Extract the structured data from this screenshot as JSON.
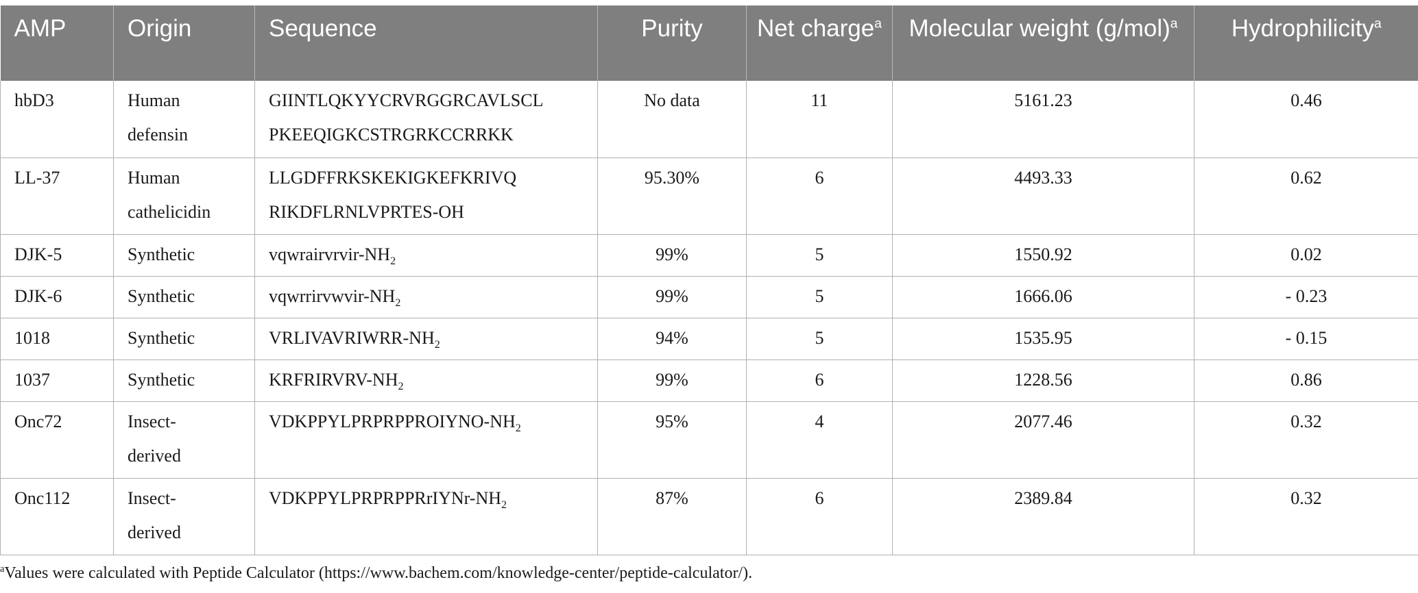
{
  "header": {
    "amp": "AMP",
    "origin": "Origin",
    "sequence": "Sequence",
    "purity": "Purity",
    "net_charge": "Net charge",
    "net_charge_mark": "a",
    "mw": "Molecular weight (g/mol)",
    "mw_mark": "a",
    "hydrophilicity": "Hydrophilicity",
    "hydrophilicity_mark": "a"
  },
  "rows": [
    {
      "amp": "hbD3",
      "origin": "Human defensin",
      "seq1": "GIINTLQKYYCRVRGGRCAVLSCL",
      "seq2": "PKEEQIGKCSTRGRKCCRRKK",
      "suffix": "",
      "sub": "",
      "purity": "No data",
      "charge": "11",
      "mw": "5161.23",
      "hyd": "0.46"
    },
    {
      "amp": "LL-37",
      "origin": "Human cathelicidin",
      "seq1": "LLGDFFRKSKEKIGKEFKRIVQ",
      "seq2": "RIKDFLRNLVPRTES-OH",
      "suffix": "",
      "sub": "",
      "purity": "95.30%",
      "charge": "6",
      "mw": "4493.33",
      "hyd": "0.62"
    },
    {
      "amp": "DJK-5",
      "origin": "Synthetic",
      "seq1": "vqwrairvrvir-NH",
      "sub": "2",
      "purity": "99%",
      "charge": "5",
      "mw": "1550.92",
      "hyd": "0.02"
    },
    {
      "amp": "DJK-6",
      "origin": "Synthetic",
      "seq1": "vqwrrirvwvir-NH",
      "sub": "2",
      "purity": "99%",
      "charge": "5",
      "mw": "1666.06",
      "hyd": "- 0.23"
    },
    {
      "amp": "1018",
      "origin": "Synthetic",
      "seq1": "VRLIVAVRIWRR-NH",
      "sub": "2",
      "purity": "94%",
      "charge": "5",
      "mw": "1535.95",
      "hyd": "- 0.15"
    },
    {
      "amp": "1037",
      "origin": "Synthetic",
      "seq1": "KRFRIRVRV-NH",
      "sub": "2",
      "purity": "99%",
      "charge": "6",
      "mw": "1228.56",
      "hyd": "0.86"
    },
    {
      "amp": "Onc72",
      "origin": "Insect-derived",
      "seq1": "VDKPPYLPRPRPPROIYNO-NH",
      "sub": "2",
      "purity": "95%",
      "charge": "4",
      "mw": "2077.46",
      "hyd": "0.32"
    },
    {
      "amp": "Onc112",
      "origin": "Insect-derived",
      "seq1": "VDKPPYLPRPRPPRrIYNr-NH",
      "sub": "2",
      "purity": "87%",
      "charge": "6",
      "mw": "2389.84",
      "hyd": "0.32"
    }
  ],
  "origin_lines": [
    [
      "Human",
      "defensin"
    ],
    [
      "Human",
      "cathelicidin"
    ],
    [
      "Synthetic"
    ],
    [
      "Synthetic"
    ],
    [
      "Synthetic"
    ],
    [
      "Synthetic"
    ],
    [
      "Insect-",
      "derived"
    ],
    [
      "Insect-",
      "derived"
    ]
  ],
  "footnote": {
    "mark": "a",
    "text": "Values were calculated with Peptide Calculator (https://www.bachem.com/knowledge-center/peptide-calculator/)."
  }
}
